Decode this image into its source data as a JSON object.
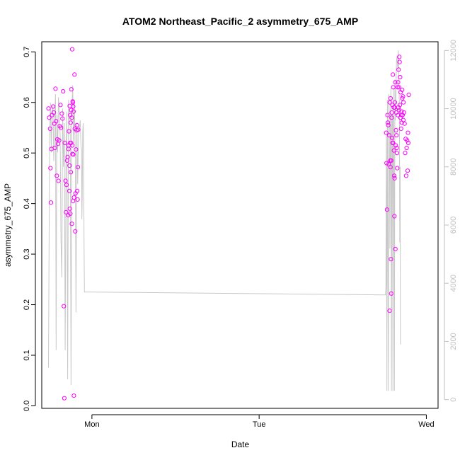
{
  "chart_data": {
    "type": "scatter",
    "title": "ATOM2 Northeast_Pacific_2 asymmetry_675_AMP",
    "xlabel": "Date",
    "ylabel": "asymmetry_675_AMP",
    "x_ticks": [
      {
        "label": "Mon",
        "day": 1.0
      },
      {
        "label": "Tue",
        "day": 2.0
      },
      {
        "label": "Wed",
        "day": 3.0
      }
    ],
    "xlim_days": [
      0.7,
      3.07
    ],
    "ylim": [
      -0.005,
      0.72
    ],
    "y_ticks": [
      0.0,
      0.1,
      0.2,
      0.3,
      0.4,
      0.5,
      0.6,
      0.7
    ],
    "y2lim": [
      -300,
      12300
    ],
    "y2_ticks": [
      0,
      2000,
      4000,
      6000,
      8000,
      10000,
      12000
    ],
    "point_color": "#ff00ff",
    "line_color": "#c8c8c8",
    "right_axis_color": "#bfbfbf",
    "series": [
      {
        "marker": "circle",
        "points": [
          [
            0.74,
            0.588
          ],
          [
            0.745,
            0.57
          ],
          [
            0.75,
            0.548
          ],
          [
            0.752,
            0.47
          ],
          [
            0.755,
            0.402
          ],
          [
            0.758,
            0.508
          ],
          [
            0.762,
            0.575
          ],
          [
            0.768,
            0.592
          ],
          [
            0.772,
            0.58
          ],
          [
            0.775,
            0.558
          ],
          [
            0.778,
            0.51
          ],
          [
            0.782,
            0.627
          ],
          [
            0.786,
            0.563
          ],
          [
            0.79,
            0.455
          ],
          [
            0.793,
            0.527
          ],
          [
            0.797,
            0.518
          ],
          [
            0.8,
            0.445
          ],
          [
            0.804,
            0.525
          ],
          [
            0.808,
            0.553
          ],
          [
            0.812,
            0.595
          ],
          [
            0.815,
            0.55
          ],
          [
            0.82,
            0.578
          ],
          [
            0.824,
            0.568
          ],
          [
            0.828,
            0.622
          ],
          [
            0.832,
            0.197
          ],
          [
            0.835,
            0.015
          ],
          [
            0.838,
            0.52
          ],
          [
            0.842,
            0.445
          ],
          [
            0.845,
            0.383
          ],
          [
            0.848,
            0.437
          ],
          [
            0.852,
            0.485
          ],
          [
            0.855,
            0.492
          ],
          [
            0.858,
            0.377
          ],
          [
            0.861,
            0.515
          ],
          [
            0.865,
            0.425
          ],
          [
            0.868,
            0.39
          ],
          [
            0.871,
            0.38
          ],
          [
            0.874,
            0.462
          ],
          [
            0.877,
            0.626
          ],
          [
            0.88,
            0.36
          ],
          [
            0.882,
            0.705
          ],
          [
            0.885,
            0.602
          ],
          [
            0.888,
            0.592
          ],
          [
            0.89,
            0.582
          ],
          [
            0.893,
            0.412
          ],
          [
            0.896,
            0.655
          ],
          [
            0.898,
            0.548
          ],
          [
            0.9,
            0.345
          ],
          [
            0.902,
            0.42
          ],
          [
            0.905,
            0.507
          ],
          [
            0.908,
            0.545
          ],
          [
            0.91,
            0.555
          ],
          [
            0.912,
            0.425
          ],
          [
            0.914,
            0.408
          ],
          [
            0.916,
            0.472
          ],
          [
            0.918,
            0.546
          ],
          [
            0.86,
            0.508
          ],
          [
            0.863,
            0.543
          ],
          [
            0.867,
            0.593
          ],
          [
            0.87,
            0.575
          ],
          [
            0.873,
            0.56
          ],
          [
            0.876,
            0.585
          ],
          [
            0.879,
            0.57
          ],
          [
            0.883,
            0.515
          ],
          [
            0.886,
            0.6
          ],
          [
            0.889,
            0.497
          ],
          [
            0.892,
            0.02
          ],
          [
            0.866,
            0.475
          ],
          [
            0.87,
            0.52
          ],
          [
            0.875,
            0.52
          ],
          [
            0.884,
            0.498
          ],
          [
            0.887,
            0.405
          ],
          [
            2.76,
            0.54
          ],
          [
            2.762,
            0.48
          ],
          [
            2.765,
            0.388
          ],
          [
            2.768,
            0.575
          ],
          [
            2.77,
            0.56
          ],
          [
            2.772,
            0.555
          ],
          [
            2.775,
            0.478
          ],
          [
            2.778,
            0.535
          ],
          [
            2.781,
            0.6
          ],
          [
            2.784,
            0.485
          ],
          [
            2.786,
            0.608
          ],
          [
            2.788,
            0.29
          ],
          [
            2.79,
            0.222
          ],
          [
            2.792,
            0.57
          ],
          [
            2.795,
            0.53
          ],
          [
            2.797,
            0.595
          ],
          [
            2.8,
            0.655
          ],
          [
            2.802,
            0.63
          ],
          [
            2.805,
            0.59
          ],
          [
            2.808,
            0.455
          ],
          [
            2.81,
            0.45
          ],
          [
            2.812,
            0.6
          ],
          [
            2.815,
            0.31
          ],
          [
            2.818,
            0.545
          ],
          [
            2.82,
            0.58
          ],
          [
            2.823,
            0.51
          ],
          [
            2.826,
            0.47
          ],
          [
            2.83,
            0.575
          ],
          [
            2.833,
            0.59
          ],
          [
            2.836,
            0.63
          ],
          [
            2.838,
            0.69
          ],
          [
            2.84,
            0.68
          ],
          [
            2.843,
            0.65
          ],
          [
            2.846,
            0.62
          ],
          [
            2.85,
            0.575
          ],
          [
            2.853,
            0.56
          ],
          [
            2.856,
            0.608
          ],
          [
            2.86,
            0.612
          ],
          [
            2.863,
            0.6
          ],
          [
            2.866,
            0.58
          ],
          [
            2.87,
            0.558
          ],
          [
            2.873,
            0.5
          ],
          [
            2.876,
            0.528
          ],
          [
            2.879,
            0.455
          ],
          [
            2.882,
            0.51
          ],
          [
            2.885,
            0.525
          ],
          [
            2.888,
            0.465
          ],
          [
            2.89,
            0.54
          ],
          [
            2.892,
            0.52
          ],
          [
            2.895,
            0.615
          ],
          [
            2.78,
            0.188
          ],
          [
            2.785,
            0.472
          ],
          [
            2.79,
            0.485
          ],
          [
            2.793,
            0.58
          ],
          [
            2.798,
            0.52
          ],
          [
            2.801,
            0.52
          ],
          [
            2.806,
            0.505
          ],
          [
            2.809,
            0.375
          ],
          [
            2.811,
            0.59
          ],
          [
            2.814,
            0.64
          ],
          [
            2.817,
            0.515
          ],
          [
            2.821,
            0.535
          ],
          [
            2.824,
            0.5
          ],
          [
            2.828,
            0.63
          ],
          [
            2.831,
            0.64
          ],
          [
            2.834,
            0.665
          ],
          [
            2.837,
            0.585
          ],
          [
            2.842,
            0.595
          ],
          [
            2.845,
            0.57
          ],
          [
            2.849,
            0.548
          ],
          [
            2.852,
            0.582
          ],
          [
            2.855,
            0.625
          ],
          [
            2.858,
            0.575
          ],
          [
            2.862,
            0.565
          ]
        ]
      },
      {
        "axis": "right",
        "style": "line",
        "points": [
          [
            0.74,
            1100
          ],
          [
            0.747,
            9000
          ],
          [
            0.752,
            10200
          ],
          [
            0.757,
            8500
          ],
          [
            0.762,
            9900
          ],
          [
            0.767,
            10100
          ],
          [
            0.772,
            8200
          ],
          [
            0.777,
            9500
          ],
          [
            0.782,
            10500
          ],
          [
            0.786,
            1700
          ],
          [
            0.79,
            9800
          ],
          [
            0.795,
            8500
          ],
          [
            0.8,
            10400
          ],
          [
            0.805,
            9800
          ],
          [
            0.81,
            9100
          ],
          [
            0.815,
            5500
          ],
          [
            0.82,
            4200
          ],
          [
            0.825,
            10000
          ],
          [
            0.83,
            8000
          ],
          [
            0.835,
            9500
          ],
          [
            0.84,
            1700
          ],
          [
            0.845,
            8500
          ],
          [
            0.85,
            9900
          ],
          [
            0.855,
            700
          ],
          [
            0.86,
            10300
          ],
          [
            0.865,
            9500
          ],
          [
            0.87,
            9400
          ],
          [
            0.875,
            500
          ],
          [
            0.88,
            9800
          ],
          [
            0.885,
            10800
          ],
          [
            0.89,
            8800
          ],
          [
            0.895,
            10300
          ],
          [
            0.9,
            8600
          ],
          [
            0.905,
            3000
          ],
          [
            0.91,
            9500
          ],
          [
            0.915,
            7400
          ],
          [
            0.92,
            9300
          ],
          [
            0.925,
            9300
          ],
          [
            0.93,
            9600
          ],
          [
            0.935,
            8700
          ],
          [
            0.938,
            8600
          ],
          [
            0.94,
            6200
          ],
          [
            0.942,
            7000
          ],
          [
            0.945,
            9200
          ],
          [
            0.948,
            9500
          ],
          [
            0.95,
            8700
          ],
          [
            0.953,
            5200
          ],
          [
            0.955,
            3700
          ],
          [
            2.755,
            3600
          ],
          [
            2.758,
            3900
          ],
          [
            2.761,
            9200
          ],
          [
            2.764,
            300
          ],
          [
            2.767,
            10300
          ],
          [
            2.77,
            5400
          ],
          [
            2.773,
            300
          ],
          [
            2.776,
            10500
          ],
          [
            2.779,
            9400
          ],
          [
            2.782,
            5200
          ],
          [
            2.785,
            9500
          ],
          [
            2.788,
            10700
          ],
          [
            2.791,
            300
          ],
          [
            2.794,
            9800
          ],
          [
            2.797,
            9800
          ],
          [
            2.8,
            300
          ],
          [
            2.803,
            10700
          ],
          [
            2.806,
            9200
          ],
          [
            2.809,
            300
          ],
          [
            2.812,
            11000
          ],
          [
            2.815,
            9600
          ],
          [
            2.818,
            10500
          ],
          [
            2.821,
            11600
          ],
          [
            2.824,
            11800
          ],
          [
            2.827,
            11500
          ],
          [
            2.83,
            11400
          ],
          [
            2.833,
            12000
          ],
          [
            2.835,
            10800
          ],
          [
            2.837,
            10700
          ],
          [
            2.839,
            10000
          ],
          [
            2.841,
            5400
          ],
          [
            2.843,
            8000
          ],
          [
            2.845,
            1900
          ]
        ]
      }
    ]
  }
}
